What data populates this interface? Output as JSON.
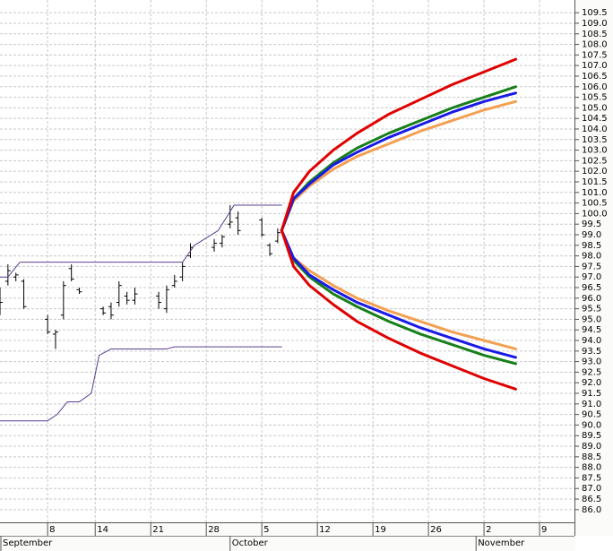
{
  "chart_data": {
    "type": "ohlc",
    "xlim": [
      1,
      73.4
    ],
    "ylim": [
      85.4,
      110.1
    ],
    "xticks": [
      {
        "value": 7,
        "label": "8"
      },
      {
        "value": 13,
        "label": "14"
      },
      {
        "value": 20,
        "label": "21"
      },
      {
        "value": 27,
        "label": "28"
      },
      {
        "value": 34,
        "label": "5"
      },
      {
        "value": 41,
        "label": "12"
      },
      {
        "value": 48,
        "label": "19"
      },
      {
        "value": 55,
        "label": "26"
      },
      {
        "value": 62,
        "label": "2"
      },
      {
        "value": 69,
        "label": "9"
      }
    ],
    "month_ticks": [
      {
        "value": 0,
        "label": "September"
      },
      {
        "value": 30,
        "label": "October"
      },
      {
        "value": 61,
        "label": "November"
      }
    ],
    "yticks": [
      {
        "value": 86,
        "label": "86.0"
      },
      {
        "value": 86.5,
        "label": "86.5"
      },
      {
        "value": 87,
        "label": "87.0"
      },
      {
        "value": 87.5,
        "label": "87.5"
      },
      {
        "value": 88,
        "label": "88.0"
      },
      {
        "value": 88.5,
        "label": "88.5"
      },
      {
        "value": 89,
        "label": "89.0"
      },
      {
        "value": 89.5,
        "label": "89.5"
      },
      {
        "value": 90,
        "label": "90.0"
      },
      {
        "value": 90.5,
        "label": "90.5"
      },
      {
        "value": 91,
        "label": "91.0"
      },
      {
        "value": 91.5,
        "label": "91.5"
      },
      {
        "value": 92,
        "label": "92.0"
      },
      {
        "value": 92.5,
        "label": "92.5"
      },
      {
        "value": 93,
        "label": "93.0"
      },
      {
        "value": 93.5,
        "label": "93.5"
      },
      {
        "value": 94,
        "label": "94.0"
      },
      {
        "value": 94.5,
        "label": "94.5"
      },
      {
        "value": 95,
        "label": "95.0"
      },
      {
        "value": 95.5,
        "label": "95.5"
      },
      {
        "value": 96,
        "label": "96.0"
      },
      {
        "value": 96.5,
        "label": "96.5"
      },
      {
        "value": 97,
        "label": "97.0"
      },
      {
        "value": 97.5,
        "label": "97.5"
      },
      {
        "value": 98,
        "label": "98.0"
      },
      {
        "value": 98.5,
        "label": "98.5"
      },
      {
        "value": 99,
        "label": "99.0"
      },
      {
        "value": 99.5,
        "label": "99.5"
      },
      {
        "value": 100,
        "label": "100.0"
      },
      {
        "value": 100.5,
        "label": "100.5"
      },
      {
        "value": 101,
        "label": "101.0"
      },
      {
        "value": 101.5,
        "label": "101.5"
      },
      {
        "value": 102,
        "label": "102.0"
      },
      {
        "value": 102.5,
        "label": "102.5"
      },
      {
        "value": 103,
        "label": "103.0"
      },
      {
        "value": 103.5,
        "label": "103.5"
      },
      {
        "value": 104,
        "label": "104.0"
      },
      {
        "value": 104.5,
        "label": "104.5"
      },
      {
        "value": 105,
        "label": "105.0"
      },
      {
        "value": 105.5,
        "label": "105.5"
      },
      {
        "value": 106,
        "label": "106.0"
      },
      {
        "value": 106.5,
        "label": "106.5"
      },
      {
        "value": 107,
        "label": "107.0"
      },
      {
        "value": 107.5,
        "label": "107.5"
      },
      {
        "value": 108,
        "label": "108.0"
      },
      {
        "value": 108.5,
        "label": "108.5"
      },
      {
        "value": 109,
        "label": "109.0"
      },
      {
        "value": 109.5,
        "label": "109.5"
      }
    ],
    "grid": true,
    "ohlc": {
      "color": "#000000",
      "x": [
        1,
        2,
        3,
        4,
        7,
        8,
        9,
        10,
        11,
        14,
        15,
        16,
        17,
        18,
        21,
        22,
        23,
        24,
        25,
        28,
        29,
        30,
        31,
        34,
        35,
        36
      ],
      "open": [
        96.3,
        96.8,
        97.0,
        96.8,
        95.0,
        94.3,
        95.2,
        97.4,
        96.4,
        95.5,
        95.6,
        95.8,
        96.1,
        95.9,
        96.1,
        95.5,
        96.6,
        97.0,
        98.0,
        98.4,
        98.6,
        99.5,
        99.8,
        99.7,
        98.5,
        98.7
      ],
      "high": [
        96.5,
        97.6,
        97.2,
        96.9,
        95.2,
        94.5,
        96.8,
        97.6,
        96.5,
        95.6,
        95.8,
        96.8,
        96.3,
        96.5,
        96.3,
        96.6,
        97.1,
        97.7,
        98.6,
        98.8,
        99.0,
        100.4,
        100.1,
        99.8,
        98.6,
        99.3
      ],
      "low": [
        95.2,
        96.6,
        96.8,
        95.5,
        94.3,
        93.6,
        95.0,
        96.8,
        96.2,
        95.2,
        95.0,
        95.6,
        95.7,
        95.7,
        95.5,
        95.3,
        96.5,
        96.8,
        97.9,
        98.2,
        98.4,
        99.3,
        99.0,
        98.9,
        98.0,
        98.6
      ],
      "close": [
        95.8,
        97.3,
        97.1,
        95.6,
        94.4,
        94.4,
        96.6,
        96.9,
        96.3,
        95.3,
        95.2,
        96.6,
        95.9,
        96.2,
        95.8,
        96.4,
        96.8,
        97.5,
        98.4,
        98.6,
        98.9,
        99.6,
        99.2,
        99.0,
        98.1,
        99.1
      ]
    },
    "series": [
      {
        "color": "#5b3f8f",
        "width": 1,
        "x": [
          1,
          2,
          3.5,
          24,
          25.5,
          28.5,
          30.5,
          36.5
        ],
        "values": [
          97.0,
          97.0,
          97.7,
          97.7,
          98.5,
          99.2,
          100.4,
          100.4
        ]
      },
      {
        "color": "#5b3f8f",
        "width": 1,
        "x": [
          1,
          7,
          8.2,
          9.5,
          11,
          12.5,
          13.5,
          15,
          22,
          23,
          36.5
        ],
        "values": [
          90.2,
          90.2,
          90.5,
          91.1,
          91.1,
          91.5,
          93.3,
          93.6,
          93.6,
          93.7,
          93.7
        ]
      },
      {
        "color": "#f4a052",
        "width": 3,
        "x": [
          36.5,
          38,
          40,
          43,
          46,
          50,
          54,
          58,
          62,
          66
        ],
        "values": [
          99.2,
          100.6,
          101.3,
          102.1,
          102.7,
          103.3,
          103.9,
          104.4,
          104.9,
          105.3
        ]
      },
      {
        "color": "#f4a052",
        "width": 3,
        "x": [
          36.5,
          38,
          40,
          43,
          46,
          50,
          54,
          58,
          62,
          66
        ],
        "values": [
          99.2,
          97.9,
          97.3,
          96.6,
          96.0,
          95.4,
          94.9,
          94.4,
          94.0,
          93.6
        ]
      },
      {
        "color": "#17801a",
        "width": 3,
        "x": [
          36.5,
          38,
          40,
          43,
          46,
          50,
          54,
          58,
          62,
          66
        ],
        "values": [
          99.2,
          100.7,
          101.5,
          102.4,
          103.1,
          103.8,
          104.4,
          105.0,
          105.5,
          106.0
        ]
      },
      {
        "color": "#17801a",
        "width": 3,
        "x": [
          36.5,
          38,
          40,
          43,
          46,
          50,
          54,
          58,
          62,
          66
        ],
        "values": [
          99.2,
          97.8,
          97.0,
          96.2,
          95.6,
          94.9,
          94.3,
          93.8,
          93.3,
          92.9
        ]
      },
      {
        "color": "#1a1ae6",
        "width": 3,
        "x": [
          36.5,
          38,
          40,
          43,
          46,
          50,
          54,
          58,
          62,
          66
        ],
        "values": [
          99.2,
          100.7,
          101.4,
          102.3,
          102.9,
          103.6,
          104.2,
          104.8,
          105.3,
          105.7
        ]
      },
      {
        "color": "#1a1ae6",
        "width": 3,
        "x": [
          36.5,
          38,
          40,
          43,
          46,
          50,
          54,
          58,
          62,
          66
        ],
        "values": [
          99.2,
          97.9,
          97.1,
          96.4,
          95.8,
          95.2,
          94.6,
          94.1,
          93.6,
          93.2
        ]
      },
      {
        "color": "#e00000",
        "width": 3,
        "x": [
          36.5,
          38,
          40,
          43,
          46,
          50,
          54,
          58,
          62,
          66
        ],
        "values": [
          99.2,
          101.0,
          102.0,
          103.0,
          103.8,
          104.7,
          105.4,
          106.1,
          106.7,
          107.3
        ]
      },
      {
        "color": "#e00000",
        "width": 3,
        "x": [
          36.5,
          38,
          40,
          43,
          46,
          50,
          54,
          58,
          62,
          66
        ],
        "values": [
          99.2,
          97.5,
          96.6,
          95.7,
          94.9,
          94.1,
          93.4,
          92.8,
          92.2,
          91.7
        ]
      }
    ]
  }
}
